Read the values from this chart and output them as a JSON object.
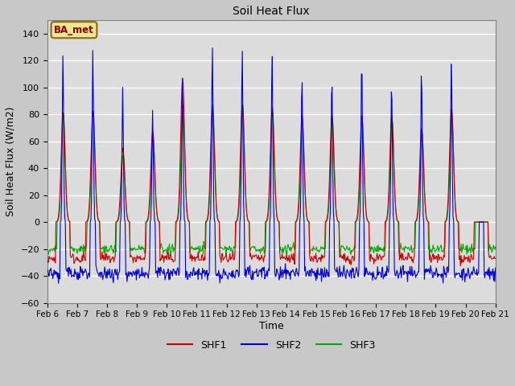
{
  "title": "Soil Heat Flux",
  "xlabel": "Time",
  "ylabel": "Soil Heat Flux (W/m2)",
  "ylim": [
    -60,
    150
  ],
  "yticks": [
    -60,
    -40,
    -20,
    0,
    20,
    40,
    60,
    80,
    100,
    120,
    140
  ],
  "fig_bg": "#c8c8c8",
  "plot_bg": "#dcdcdc",
  "grid_color": "white",
  "annotation_text": "BA_met",
  "annotation_bg": "#f0e68c",
  "annotation_border": "#8b6914",
  "line_colors": {
    "SHF1": "#cc0000",
    "SHF2": "#0000dd",
    "SHF3": "#00aa00"
  },
  "xtick_labels": [
    "Feb 6",
    "Feb 7",
    "Feb 8",
    "Feb 9",
    "Feb 10",
    "Feb 11",
    "Feb 12",
    "Feb 13",
    "Feb 14",
    "Feb 15",
    "Feb 16",
    "Feb 17",
    "Feb 18",
    "Feb 19",
    "Feb 20",
    "Feb 21"
  ],
  "n_days": 15,
  "samples_per_day": 48,
  "shf1_peaks": [
    82,
    83,
    55,
    68,
    107,
    85,
    87,
    85,
    79,
    79,
    79,
    79,
    70,
    85,
    0
  ],
  "shf2_peaks": [
    125,
    128,
    100,
    83,
    107,
    131,
    130,
    128,
    110,
    109,
    123,
    105,
    115,
    122,
    0
  ],
  "shf3_peaks": [
    80,
    82,
    50,
    65,
    88,
    88,
    88,
    83,
    75,
    77,
    77,
    77,
    68,
    82,
    0
  ],
  "shf1_night": -27,
  "shf2_night": -38,
  "shf3_night": -20,
  "line_width": 0.8
}
